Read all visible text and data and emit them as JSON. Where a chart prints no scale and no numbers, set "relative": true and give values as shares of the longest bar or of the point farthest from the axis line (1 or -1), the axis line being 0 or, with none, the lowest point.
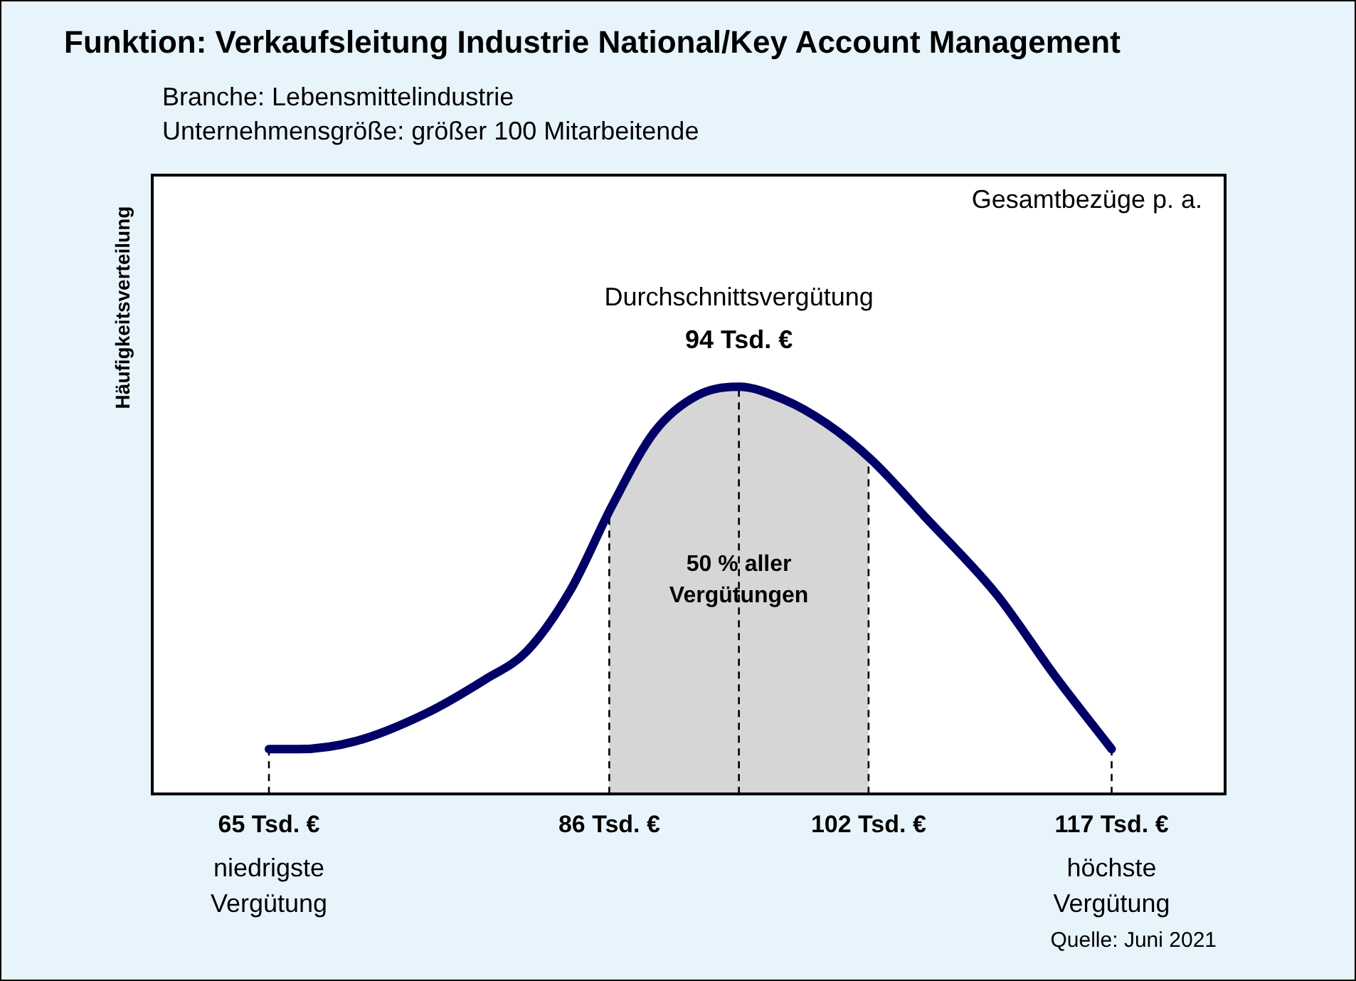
{
  "chart_data": {
    "type": "line",
    "relative": true,
    "title": "Funktion: Verkaufsleitung Industrie National/Key Account Management",
    "subtitle": "Branche: Lebensmittelindustrie\nUnternehmensgröße: größer 100 Mitarbeitende",
    "ylabel": "Häufigkeitsverteilung",
    "x": [
      65,
      66.8,
      70.4,
      74.8,
      78.3,
      80.9,
      83.6,
      86.2,
      88.8,
      91.5,
      94,
      96.7,
      99.4,
      102.2,
      105.5,
      109.9,
      113.5,
      117
    ],
    "series": [
      {
        "color": "#000066",
        "values": [
          0.11,
          0.11,
          0.13,
          0.2,
          0.28,
          0.35,
          0.5,
          0.71,
          0.89,
          0.98,
          1,
          0.97,
          0.91,
          0.82,
          0.68,
          0.49,
          0.29,
          0.11
        ]
      }
    ],
    "xlim": [
      57.8,
      124
    ],
    "xticks": [
      {
        "value": 65,
        "label": "65 Tsd. €"
      },
      {
        "value": 86,
        "label": "86 Tsd. €"
      },
      {
        "value": 102,
        "label": "102 Tsd. €"
      },
      {
        "value": 117,
        "label": "117 Tsd. €"
      }
    ],
    "bands": [
      {
        "axis": "x",
        "from": 86,
        "to": 102,
        "label": "50 % aller Vergütungen",
        "color": "#d6d6d6"
      }
    ],
    "ref_lines": [
      {
        "axis": "x",
        "value": 65,
        "line_style": "dashed"
      },
      {
        "axis": "x",
        "value": 86,
        "line_style": "dashed"
      },
      {
        "axis": "x",
        "value": 94,
        "label": "Durchschnittsvergütung",
        "line_style": "dashed"
      },
      {
        "axis": "x",
        "value": 102,
        "line_style": "dashed"
      },
      {
        "axis": "x",
        "value": 117,
        "line_style": "dashed"
      }
    ],
    "annotations": [
      "Gesamtbezüge p. a.",
      "Quelle: Juni 2021",
      {
        "text": "94 Tsd. €",
        "x": 94,
        "y": 1
      },
      "niedrigste Vergütung",
      "höchste Vergütung"
    ],
    "legend": false
  }
}
